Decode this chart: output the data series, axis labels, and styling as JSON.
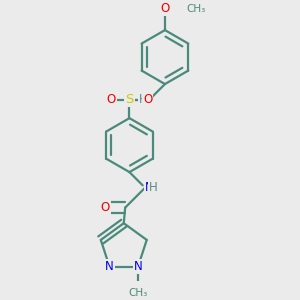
{
  "bg_color": "#ebebeb",
  "bond_color": "#4a8a7a",
  "bond_width": 1.6,
  "dbo": 0.018,
  "atom_colors": {
    "N": "#0000ee",
    "O": "#ee0000",
    "S": "#cccc00",
    "H": "#5a8a80",
    "C": "#4a8a7a"
  },
  "font_size": 8.5
}
